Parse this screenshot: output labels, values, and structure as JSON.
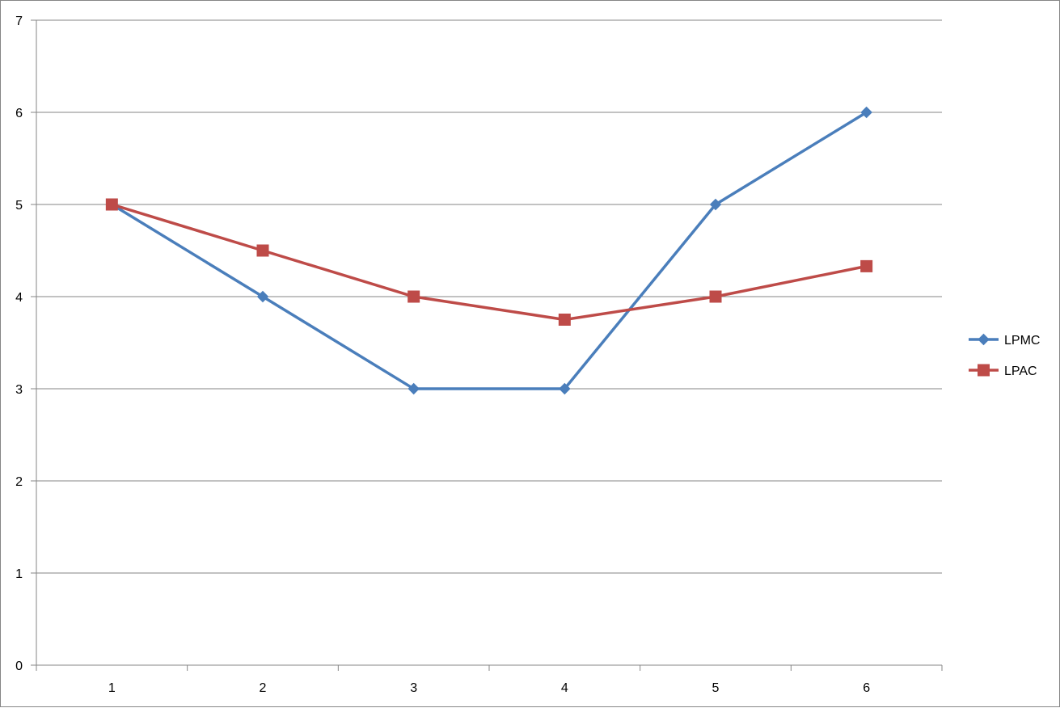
{
  "chart_data": {
    "type": "line",
    "title": "",
    "xlabel": "",
    "ylabel": "",
    "categories": [
      "1",
      "2",
      "3",
      "4",
      "5",
      "6"
    ],
    "ylim": [
      0,
      7
    ],
    "yticks": [
      "0",
      "1",
      "2",
      "3",
      "4",
      "5",
      "6",
      "7"
    ],
    "grid": "horizontal",
    "legend_position": "right",
    "series": [
      {
        "name": "LPMC",
        "values": [
          5,
          4,
          3,
          3,
          5,
          6
        ],
        "color": "#4A7EBB",
        "marker": "diamond"
      },
      {
        "name": "LPAC",
        "values": [
          5,
          4.5,
          4,
          3.75,
          4,
          4.33
        ],
        "color": "#BE4B48",
        "marker": "square"
      }
    ]
  }
}
